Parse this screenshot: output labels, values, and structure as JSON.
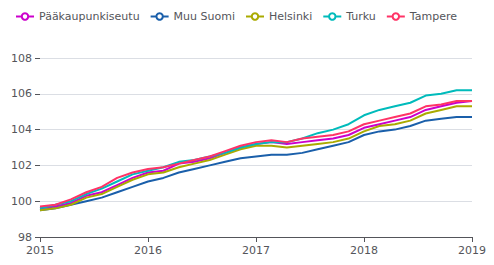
{
  "chart_data": {
    "type": "line",
    "x": [
      2015,
      2015.142857142857,
      2015.285714285714,
      2015.428571428571,
      2015.571428571429,
      2015.714285714286,
      2015.857142857143,
      2016,
      2016.142857142857,
      2016.285714285714,
      2016.428571428571,
      2016.571428571429,
      2016.714285714286,
      2016.857142857143,
      2017,
      2017.142857142857,
      2017.285714285714,
      2017.428571428571,
      2017.571428571429,
      2017.714285714286,
      2017.857142857143,
      2018,
      2018.142857142857,
      2018.285714285714,
      2018.428571428571,
      2018.571428571429,
      2018.714285714286,
      2018.857142857143,
      2019
    ],
    "series": [
      {
        "name": "Pääkaupunkiseutu",
        "color": "#CC00CC",
        "values": [
          99.6,
          99.7,
          99.9,
          100.3,
          100.5,
          100.9,
          101.3,
          101.6,
          101.7,
          102.1,
          102.2,
          102.4,
          102.7,
          103.0,
          103.2,
          103.3,
          103.2,
          103.3,
          103.4,
          103.5,
          103.7,
          104.1,
          104.3,
          104.5,
          104.7,
          105.1,
          105.3,
          105.5,
          105.6
        ]
      },
      {
        "name": "Muu Suomi",
        "color": "#1A5FAA",
        "values": [
          99.5,
          99.6,
          99.8,
          100.0,
          100.2,
          100.5,
          100.8,
          101.1,
          101.3,
          101.6,
          101.8,
          102.0,
          102.2,
          102.4,
          102.5,
          102.6,
          102.6,
          102.7,
          102.9,
          103.1,
          103.3,
          103.7,
          103.9,
          104.0,
          104.2,
          104.5,
          104.6,
          104.7,
          104.7
        ]
      },
      {
        "name": "Helsinki",
        "color": "#AAAA00",
        "values": [
          99.5,
          99.6,
          99.8,
          100.2,
          100.4,
          100.8,
          101.2,
          101.5,
          101.6,
          101.9,
          102.1,
          102.3,
          102.6,
          102.9,
          103.1,
          103.1,
          103.0,
          103.1,
          103.2,
          103.3,
          103.5,
          103.9,
          104.2,
          104.3,
          104.5,
          104.9,
          105.1,
          105.3,
          105.3
        ]
      },
      {
        "name": "Turku",
        "color": "#00BBBB",
        "values": [
          99.6,
          99.8,
          100.0,
          100.4,
          100.7,
          101.1,
          101.5,
          101.7,
          101.9,
          102.2,
          102.3,
          102.5,
          102.7,
          103.0,
          103.2,
          103.3,
          103.3,
          103.5,
          103.8,
          104.0,
          104.3,
          104.8,
          105.1,
          105.3,
          105.5,
          105.9,
          106.0,
          106.2,
          106.2
        ]
      },
      {
        "name": "Tampere",
        "color": "#FF3366",
        "values": [
          99.7,
          99.8,
          100.1,
          100.5,
          100.8,
          101.3,
          101.6,
          101.8,
          101.9,
          102.1,
          102.3,
          102.5,
          102.8,
          103.1,
          103.3,
          103.4,
          103.3,
          103.5,
          103.6,
          103.7,
          103.9,
          104.3,
          104.5,
          104.7,
          104.9,
          105.3,
          105.4,
          105.6,
          105.6
        ]
      }
    ],
    "xlim": [
      2015,
      2019
    ],
    "xticks": [
      2015,
      2016,
      2017,
      2018,
      2019
    ],
    "ylim": [
      98,
      108
    ],
    "yticks": [
      98,
      100,
      102,
      104,
      106,
      108
    ],
    "grid": true,
    "legend": "upper left"
  }
}
